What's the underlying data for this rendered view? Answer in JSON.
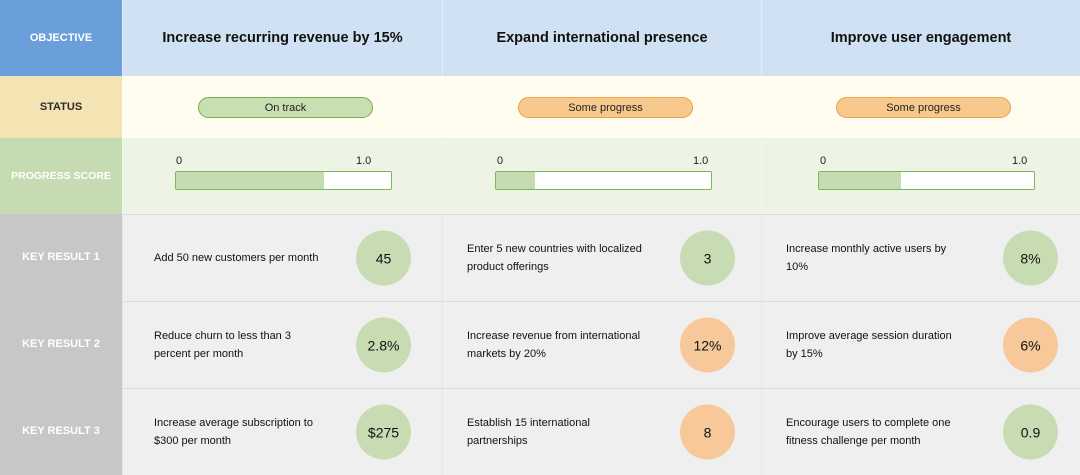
{
  "row_labels": {
    "objective": "OBJECTIVE",
    "status": "STATUS",
    "progress": "PROGRESS SCORE",
    "kr1": "KEY RESULT 1",
    "kr2": "KEY RESULT 2",
    "kr3": "KEY RESULT 3"
  },
  "colors": {
    "on_track": "#c8dfb3",
    "some_progress": "#f7c98d",
    "progress_fill": "#c5dcb2",
    "header_accent": "#6a9fdb"
  },
  "objectives": [
    {
      "title": "Increase recurring revenue by 15%",
      "status": "On track",
      "status_color": "green",
      "progress": {
        "min": "0",
        "max": "1.0",
        "value": 0.69
      },
      "key_results": [
        {
          "text": "Add 50 new customers per month",
          "value": "45",
          "color": "green"
        },
        {
          "text": "Reduce churn to less than 3 percent per month",
          "value": "2.8%",
          "color": "green"
        },
        {
          "text": "Increase average subscription to $300 per month",
          "value": "$275",
          "color": "green"
        }
      ]
    },
    {
      "title": "Expand international presence",
      "status": "Some progress",
      "status_color": "orange",
      "progress": {
        "min": "0",
        "max": "1.0",
        "value": 0.18
      },
      "key_results": [
        {
          "text": "Enter 5 new countries with localized product offerings",
          "value": "3",
          "color": "green"
        },
        {
          "text": "Increase revenue from international markets by 20%",
          "value": "12%",
          "color": "orange"
        },
        {
          "text": "Establish 15 international partnerships",
          "value": "8",
          "color": "orange"
        }
      ]
    },
    {
      "title": "Improve user engagement",
      "status": "Some progress",
      "status_color": "orange",
      "progress": {
        "min": "0",
        "max": "1.0",
        "value": 0.38
      },
      "key_results": [
        {
          "text": "Increase monthly active users by 10%",
          "value": "8%",
          "color": "green"
        },
        {
          "text": "Improve average session duration by 15%",
          "value": "6%",
          "color": "orange"
        },
        {
          "text": "Encourage users to complete one fitness challenge per month",
          "value": "0.9",
          "color": "green"
        }
      ]
    }
  ]
}
